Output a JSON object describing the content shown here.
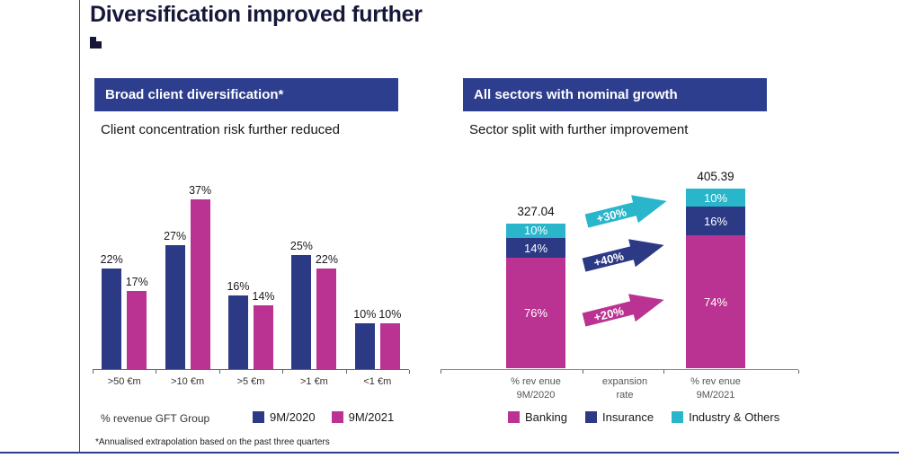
{
  "page": {
    "title": "Diversification improved further"
  },
  "colors": {
    "navy": "#2c3a86",
    "magenta": "#bb3392",
    "teal": "#29b6cb",
    "header_bg": "#2d3e8f",
    "title": "#17173a"
  },
  "left_panel": {
    "header": "Broad client diversification*",
    "subtitle": "Client concentration risk further reduced",
    "axis_caption": "% revenue GFT Group",
    "footnote": "*Annualised extrapolation based on the past three quarters",
    "legend": [
      {
        "label": "9M/2020",
        "color": "#2c3a86"
      },
      {
        "label": "9M/2021",
        "color": "#bb3392"
      }
    ]
  },
  "right_panel": {
    "header": "All sectors with nominal growth",
    "subtitle": "Sector split with further improvement",
    "legend": [
      {
        "label": "Banking",
        "color": "#bb3392"
      },
      {
        "label": "Insurance",
        "color": "#2c3a86"
      },
      {
        "label": "Industry & Others",
        "color": "#29b6cb"
      }
    ]
  },
  "chart_data": [
    {
      "type": "bar",
      "title": "Broad client diversification",
      "categories": [
        ">50 €m",
        ">10 €m",
        ">5 €m",
        ">1 €m",
        "<1 €m"
      ],
      "series": [
        {
          "name": "9M/2020",
          "color": "#2c3a86",
          "values": [
            22,
            27,
            16,
            25,
            10
          ]
        },
        {
          "name": "9M/2021",
          "color": "#bb3392",
          "values": [
            17,
            37,
            14,
            22,
            10
          ]
        }
      ],
      "value_format": "percent",
      "ylim": [
        0,
        40
      ],
      "grid": false,
      "legend_position": "bottom"
    },
    {
      "type": "bar",
      "variant": "stacked",
      "title": "All sectors with nominal growth",
      "bars": [
        {
          "total": 327.04,
          "x_label_lines": [
            "% rev enue",
            "9M/2020"
          ],
          "segments": [
            {
              "name": "Industry & Others",
              "value": 10,
              "color": "#29b6cb"
            },
            {
              "name": "Insurance",
              "value": 14,
              "color": "#2c3a86"
            },
            {
              "name": "Banking",
              "value": 76,
              "color": "#bb3392"
            }
          ]
        },
        {
          "total": 405.39,
          "x_label_lines": [
            "% rev enue",
            "9M/2021"
          ],
          "segments": [
            {
              "name": "Industry & Others",
              "value": 10,
              "color": "#29b6cb"
            },
            {
              "name": "Insurance",
              "value": 16,
              "color": "#2c3a86"
            },
            {
              "name": "Banking",
              "value": 74,
              "color": "#bb3392"
            }
          ]
        }
      ],
      "middle_label_lines": [
        "expansion",
        "rate"
      ],
      "arrows": [
        {
          "label": "+30%",
          "color": "#29b6cb"
        },
        {
          "label": "+40%",
          "color": "#2c3a86"
        },
        {
          "label": "+20%",
          "color": "#bb3392"
        }
      ],
      "legend_position": "bottom"
    }
  ]
}
